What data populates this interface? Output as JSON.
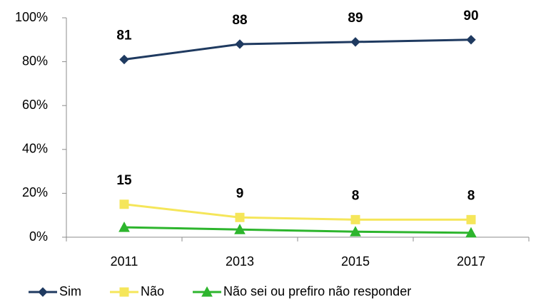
{
  "chart_data": {
    "type": "line",
    "categories": [
      "2011",
      "2013",
      "2015",
      "2017"
    ],
    "series": [
      {
        "name": "Sim",
        "color": "#1f3a60",
        "marker": "diamond",
        "data_labels": true,
        "values": [
          81,
          88,
          89,
          90
        ]
      },
      {
        "name": "Não",
        "color": "#f5e65a",
        "marker": "square",
        "data_labels": true,
        "values": [
          15,
          9,
          8,
          8
        ]
      },
      {
        "name": "Não sei ou prefiro não responder",
        "color": "#2db52d",
        "marker": "triangle",
        "data_labels": false,
        "values": [
          4.5,
          3.5,
          2.5,
          2
        ]
      }
    ],
    "ylim": [
      0,
      100
    ],
    "yticks": [
      {
        "value": 0,
        "label": "0%"
      },
      {
        "value": 20,
        "label": "20%"
      },
      {
        "value": 40,
        "label": "40%"
      },
      {
        "value": 60,
        "label": "60%"
      },
      {
        "value": 80,
        "label": "80%"
      },
      {
        "value": 100,
        "label": "100%"
      }
    ],
    "grid": false,
    "legend": "bottom"
  }
}
